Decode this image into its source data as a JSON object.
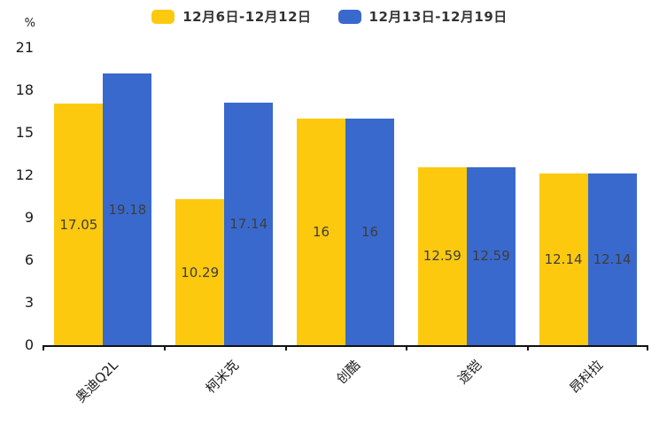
{
  "chart_data": {
    "type": "bar",
    "title": "",
    "categories": [
      "奥迪Q2L",
      "柯米克",
      "创酷",
      "途铠",
      "昂科拉"
    ],
    "series": [
      {
        "name": "12月6日-12月12日",
        "color": "#FDC90F",
        "values": [
          17.05,
          10.29,
          16,
          12.59,
          12.14
        ]
      },
      {
        "name": "12月13日-12月19日",
        "color": "#3A69CD",
        "values": [
          19.18,
          17.14,
          16,
          12.59,
          12.14
        ]
      }
    ],
    "xlabel": "",
    "ylabel": "%",
    "ylim": [
      0,
      21
    ],
    "yticks": [
      0,
      3,
      6,
      9,
      12,
      15,
      18,
      21
    ],
    "grid": false,
    "legend_position": "top-center",
    "value_label_position": "inside-center",
    "axis_color": "#111111",
    "value_label_color": "#3d3d3d"
  }
}
